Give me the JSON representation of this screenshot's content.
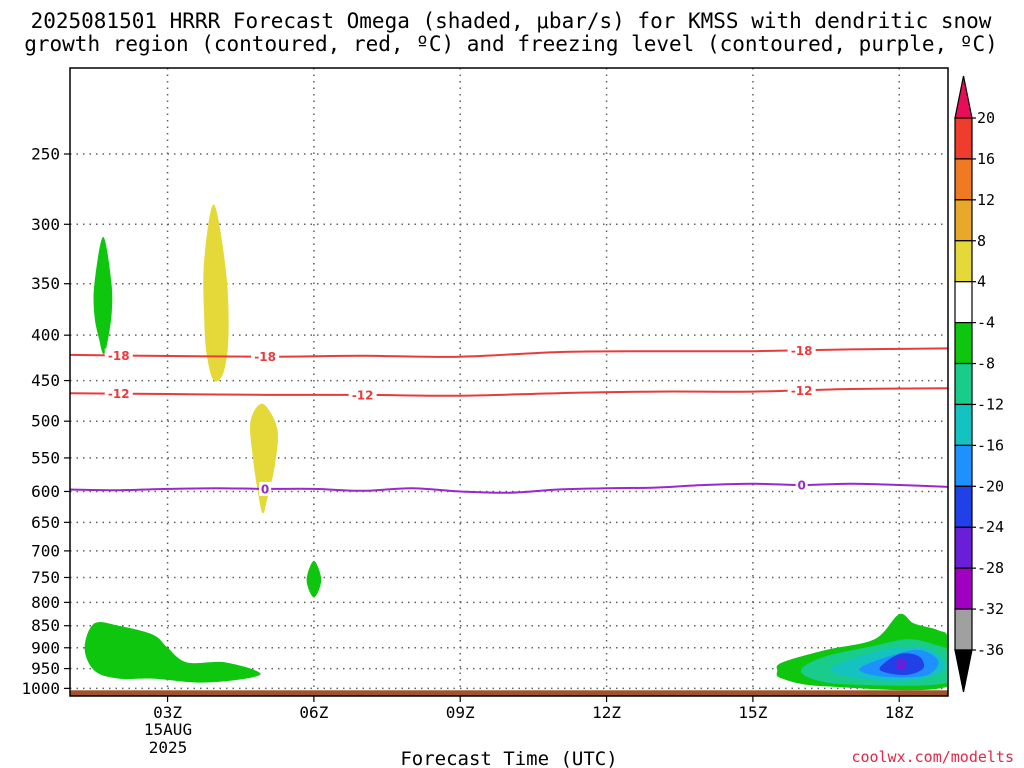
{
  "chart_data": {
    "type": "heatmap",
    "title_line1": "2025081501 HRRR Forecast Omega (shaded, μbar/s) for KMSS with dendritic snow",
    "title_line2": "growth region (contoured, red, ºC) and freezing level (contoured, purple, ºC)",
    "xlabel": "Forecast Time (UTC)",
    "ylabel": "",
    "x_ticks": [
      "03Z",
      "06Z",
      "09Z",
      "12Z",
      "15Z",
      "18Z"
    ],
    "x_hours": [
      3,
      6,
      9,
      12,
      15,
      18
    ],
    "x_range_hours": [
      1,
      19
    ],
    "date_label_line1": "15AUG",
    "date_label_line2": "2025",
    "y_ticks": [
      250,
      300,
      350,
      400,
      450,
      500,
      550,
      600,
      650,
      700,
      750,
      800,
      850,
      900,
      950,
      1000
    ],
    "y_range_mb": [
      200,
      1020
    ],
    "y_scale": "log-pressure (inverted)",
    "grid": true,
    "colorbar": {
      "labels": [
        "20",
        "16",
        "12",
        "8",
        "4",
        "-4",
        "-8",
        "-12",
        "-16",
        "-20",
        "-24",
        "-28",
        "-32",
        "-36"
      ],
      "colors": [
        "#e60d59",
        "#ee3d2c",
        "#f07a22",
        "#e8a82c",
        "#e5d839",
        "#ffffff",
        "#0dc60d",
        "#1acc8c",
        "#14c2c2",
        "#1e90ff",
        "#2040e8",
        "#6a1ed8",
        "#a000c0",
        "#a0a0a0",
        "#000000"
      ]
    },
    "contours": [
      {
        "name": "-18",
        "color": "#e83c3c",
        "label_hours": [
          2,
          5,
          16
        ],
        "points": [
          [
            1,
            421
          ],
          [
            2.5,
            422
          ],
          [
            5,
            423
          ],
          [
            7,
            422
          ],
          [
            9,
            423
          ],
          [
            11,
            418
          ],
          [
            13,
            417
          ],
          [
            15,
            417
          ],
          [
            17,
            415
          ],
          [
            19,
            414
          ]
        ]
      },
      {
        "name": "-12",
        "color": "#e83c3c",
        "label_hours": [
          2,
          7,
          16
        ],
        "points": [
          [
            1,
            465
          ],
          [
            3,
            466
          ],
          [
            5,
            467
          ],
          [
            7,
            467
          ],
          [
            9,
            468
          ],
          [
            11,
            465
          ],
          [
            13,
            463
          ],
          [
            15,
            463
          ],
          [
            17,
            460
          ],
          [
            19,
            459
          ]
        ]
      },
      {
        "name": "0",
        "color": "#9b28c8",
        "label_hours": [
          5,
          16
        ],
        "points": [
          [
            1,
            597
          ],
          [
            2,
            598
          ],
          [
            3,
            596
          ],
          [
            4,
            595
          ],
          [
            5,
            596
          ],
          [
            6,
            596
          ],
          [
            7,
            599
          ],
          [
            8,
            595
          ],
          [
            9,
            600
          ],
          [
            10,
            602
          ],
          [
            11,
            597
          ],
          [
            12,
            595
          ],
          [
            13,
            594
          ],
          [
            14,
            590
          ],
          [
            15,
            588
          ],
          [
            16,
            590
          ],
          [
            17,
            588
          ],
          [
            18,
            590
          ],
          [
            19,
            593
          ]
        ]
      }
    ],
    "omega_regions": [
      {
        "level": "-4 to -8",
        "color": "#0dc60d",
        "points": [
          [
            1.68,
            310
          ],
          [
            1.85,
            350
          ],
          [
            1.85,
            380
          ],
          [
            1.75,
            412
          ],
          [
            1.68,
            420
          ],
          [
            1.6,
            405
          ],
          [
            1.5,
            380
          ],
          [
            1.5,
            350
          ]
        ]
      },
      {
        "level": "4 to 8",
        "color": "#e5d839",
        "points": [
          [
            3.95,
            285
          ],
          [
            4.2,
            340
          ],
          [
            4.25,
            400
          ],
          [
            4.15,
            440
          ],
          [
            3.95,
            450
          ],
          [
            3.8,
            420
          ],
          [
            3.75,
            380
          ],
          [
            3.75,
            330
          ]
        ]
      },
      {
        "level": "4 to 8",
        "color": "#e5d839",
        "points": [
          [
            4.95,
            478
          ],
          [
            5.25,
            510
          ],
          [
            5.2,
            560
          ],
          [
            5.05,
            610
          ],
          [
            4.95,
            635
          ],
          [
            4.85,
            600
          ],
          [
            4.75,
            550
          ],
          [
            4.7,
            500
          ]
        ]
      },
      {
        "level": "-4 to -8",
        "color": "#0dc60d",
        "points": [
          [
            6,
            718
          ],
          [
            6.15,
            755
          ],
          [
            6,
            790
          ],
          [
            5.85,
            755
          ]
        ]
      },
      {
        "level": "-4 to -8",
        "color": "#0dc60d",
        "points": [
          [
            1.5,
            845
          ],
          [
            2,
            850
          ],
          [
            2.7,
            870
          ],
          [
            3,
            900
          ],
          [
            3.4,
            935
          ],
          [
            4.2,
            935
          ],
          [
            4.9,
            965
          ],
          [
            3.8,
            985
          ],
          [
            2.7,
            975
          ],
          [
            2,
            975
          ],
          [
            1.5,
            955
          ],
          [
            1.3,
            900
          ]
        ]
      },
      {
        "level": "-4 to -8",
        "color": "#0dc60d",
        "points": [
          [
            15.5,
            955
          ],
          [
            15.6,
            935
          ],
          [
            16.5,
            905
          ],
          [
            17.5,
            880
          ],
          [
            18,
            825
          ],
          [
            18.3,
            845
          ],
          [
            18.8,
            860
          ],
          [
            19,
            880
          ],
          [
            19,
            995
          ],
          [
            16.5,
            995
          ],
          [
            15.6,
            975
          ]
        ]
      },
      {
        "level": "-8 to -12",
        "color": "#1acc8c",
        "points": [
          [
            16,
            950
          ],
          [
            16.5,
            920
          ],
          [
            17.5,
            895
          ],
          [
            18.2,
            880
          ],
          [
            18.8,
            895
          ],
          [
            19,
            910
          ],
          [
            19,
            985
          ],
          [
            17,
            990
          ],
          [
            16.2,
            975
          ]
        ]
      },
      {
        "level": "-12 to -16",
        "color": "#14c2c2",
        "points": [
          [
            16.6,
            950
          ],
          [
            17.5,
            910
          ],
          [
            18.3,
            898
          ],
          [
            18.8,
            915
          ],
          [
            18.9,
            955
          ],
          [
            18.2,
            980
          ],
          [
            17.2,
            975
          ]
        ]
      },
      {
        "level": "-16 to -20",
        "color": "#1e90ff",
        "points": [
          [
            17.2,
            948
          ],
          [
            17.8,
            920
          ],
          [
            18.4,
            905
          ],
          [
            18.8,
            930
          ],
          [
            18.6,
            965
          ],
          [
            18,
            972
          ],
          [
            17.4,
            965
          ]
        ]
      },
      {
        "level": "-20 to -24",
        "color": "#2040e8",
        "points": [
          [
            17.6,
            948
          ],
          [
            18,
            915
          ],
          [
            18.4,
            920
          ],
          [
            18.5,
            948
          ],
          [
            18.2,
            965
          ],
          [
            17.8,
            962
          ]
        ]
      },
      {
        "level": "-24 to -28",
        "color": "#6a1ed8",
        "points": [
          [
            17.95,
            940
          ],
          [
            18,
            925
          ],
          [
            18.15,
            935
          ],
          [
            18.1,
            952
          ],
          [
            17.95,
            950
          ]
        ]
      }
    ],
    "ground_color": "#a0522d",
    "surface_pressure_mb": 1005
  },
  "credit": "coolwx.com/modelts"
}
